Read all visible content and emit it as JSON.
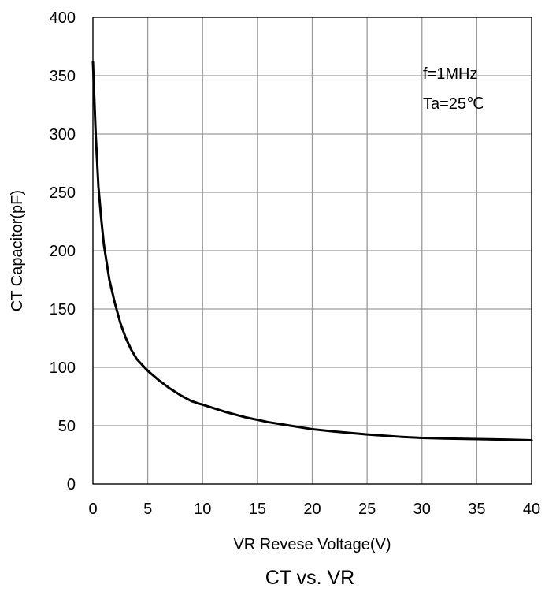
{
  "chart_data": {
    "type": "line",
    "title": "CT vs. VR",
    "xlabel": "VR Revese Voltage(V)",
    "ylabel": "CT Capacitor(pF)",
    "xlim": [
      0,
      40
    ],
    "ylim": [
      0,
      400
    ],
    "x_ticks": [
      "0",
      "5",
      "10",
      "15",
      "20",
      "25",
      "30",
      "35",
      "40"
    ],
    "y_ticks": [
      "0",
      "50",
      "100",
      "150",
      "200",
      "250",
      "300",
      "350",
      "400"
    ],
    "grid": true,
    "annotations": [
      "f=1MHz",
      "Ta=25℃"
    ],
    "line_color": "#000000",
    "grid_color": "#9a9a9a",
    "series": [
      {
        "x": [
          0,
          0.25,
          0.5,
          0.75,
          1,
          1.5,
          2,
          2.5,
          3,
          3.5,
          4,
          5,
          6,
          7,
          8,
          9,
          10,
          12,
          14,
          16,
          18,
          20,
          22,
          25,
          28,
          30,
          32,
          35,
          38,
          40
        ],
        "y": [
          362,
          300,
          255,
          228,
          205,
          175,
          155,
          138,
          125,
          115,
          107,
          97,
          89,
          82,
          76,
          71,
          68,
          62,
          57,
          53,
          50,
          47,
          45,
          42.5,
          40.5,
          39.5,
          39,
          38.5,
          38,
          37.5
        ]
      }
    ]
  }
}
